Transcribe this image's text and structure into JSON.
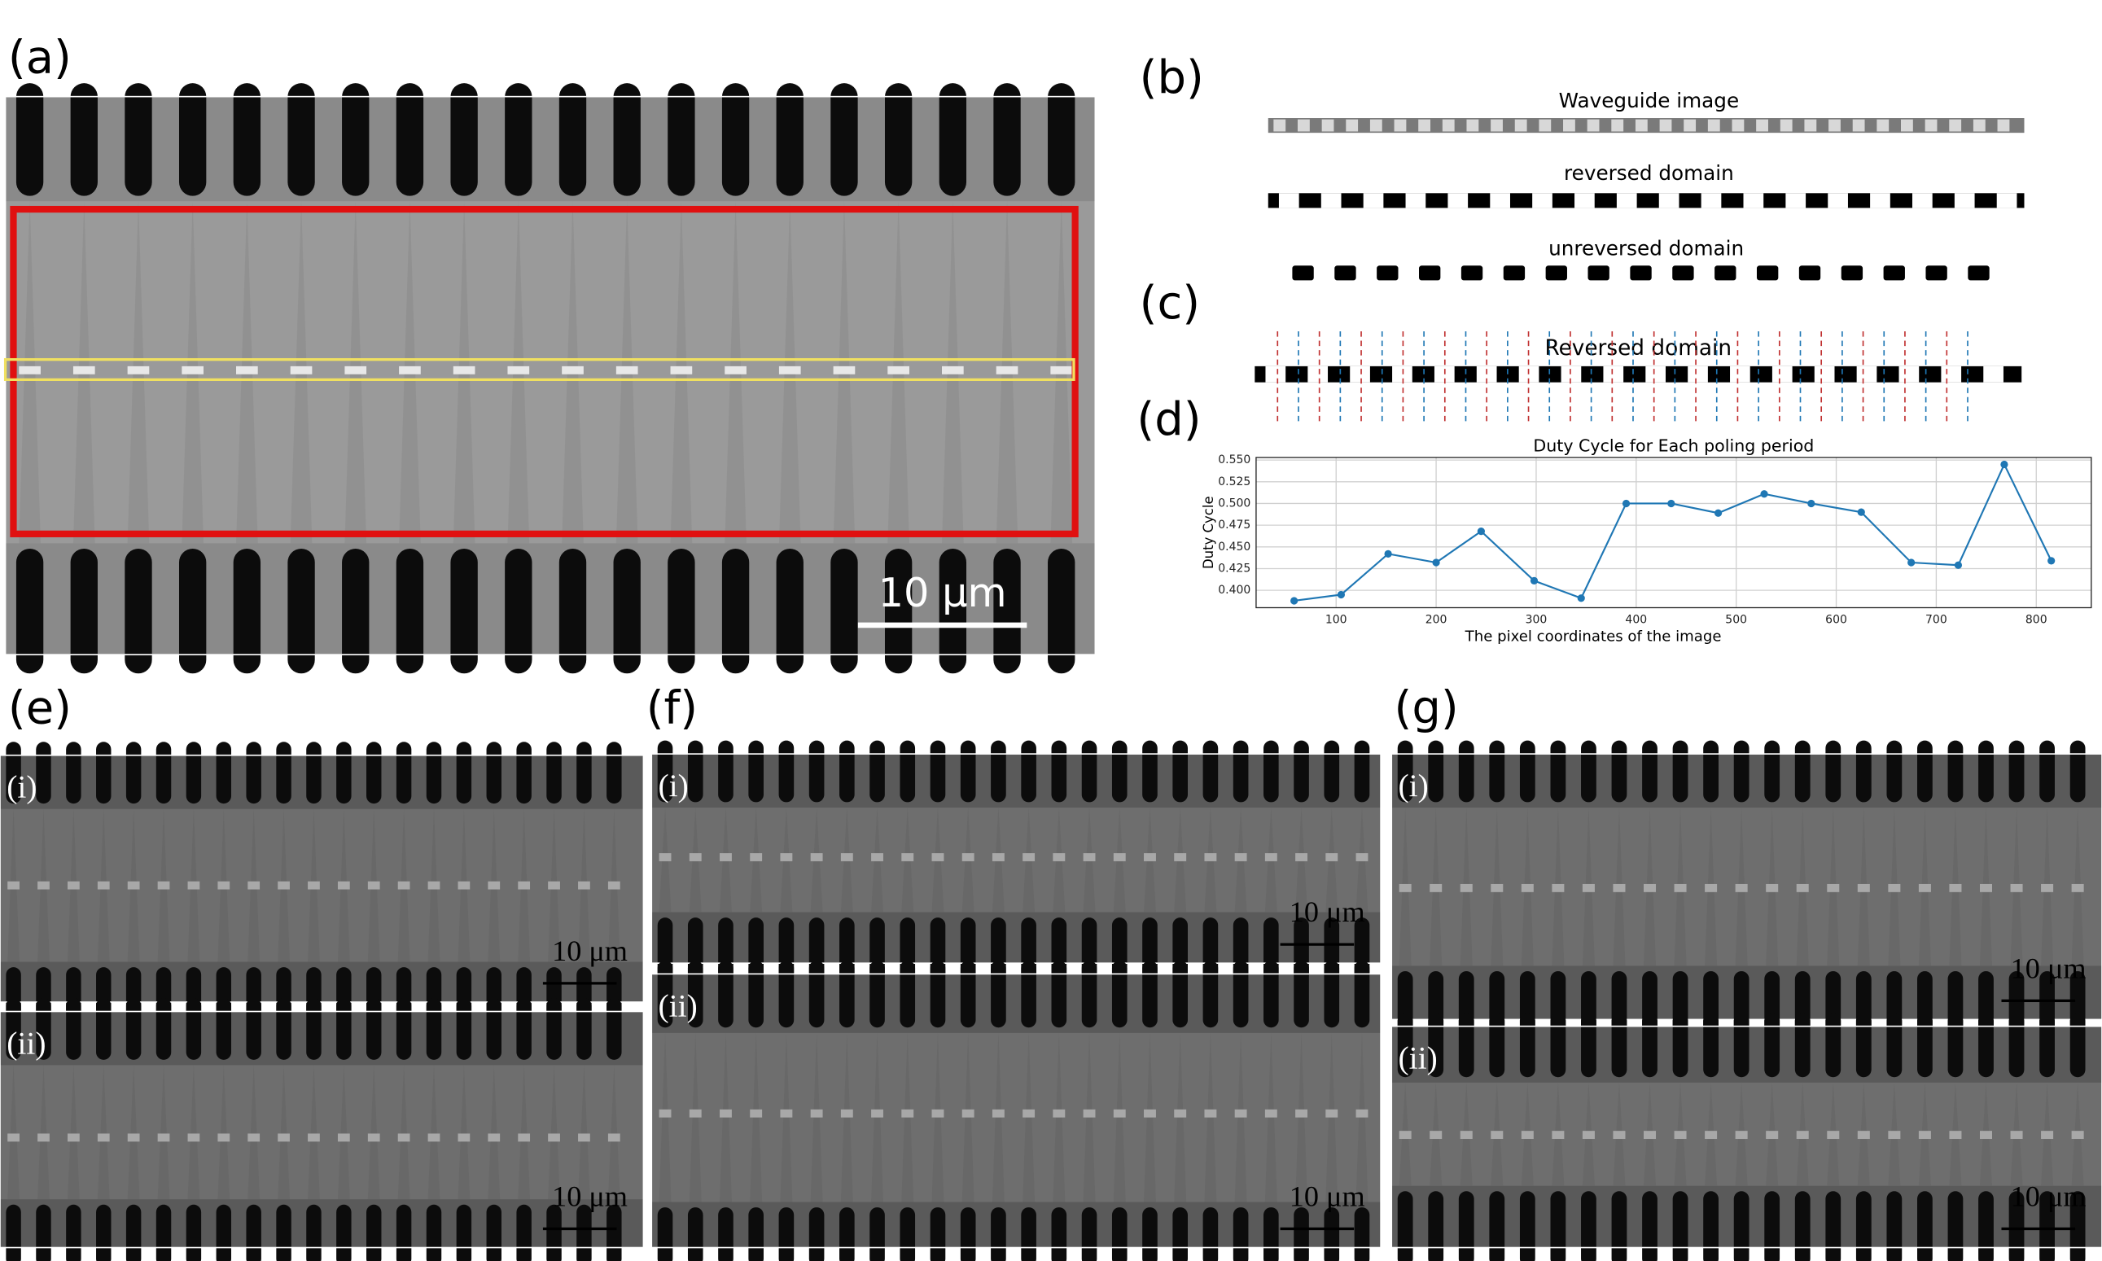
{
  "panels": {
    "a": {
      "label": "(a)",
      "scale_bar": "10 μm"
    },
    "b": {
      "label": "(b)",
      "titles": [
        "Waveguide image",
        "reversed domain",
        "unreversed domain"
      ]
    },
    "c": {
      "label": "(c)",
      "title": "Reversed domain"
    },
    "d": {
      "label": "(d)"
    },
    "e": {
      "label": "(e)",
      "sub": [
        {
          "label": "(i)",
          "scale_bar": "10 μm"
        },
        {
          "label": "(ii)",
          "scale_bar": "10 μm"
        }
      ]
    },
    "f": {
      "label": "(f)",
      "sub": [
        {
          "label": "(i)",
          "scale_bar": "10 μm"
        },
        {
          "label": "(ii)",
          "scale_bar": "10 μm"
        }
      ]
    },
    "g": {
      "label": "(g)",
      "sub": [
        {
          "label": "(i)",
          "scale_bar": "10 μm"
        },
        {
          "label": "(ii)",
          "scale_bar": "10 μm"
        }
      ]
    }
  },
  "chart_data": {
    "type": "line",
    "title": "Duty Cycle for Each poling period",
    "x_label": "The pixel coordinates of the image",
    "y_label": "Duty Cycle",
    "x": [
      58,
      105,
      152,
      200,
      245,
      298,
      345,
      390,
      435,
      482,
      528,
      575,
      625,
      675,
      722,
      768,
      815
    ],
    "values": [
      0.388,
      0.395,
      0.442,
      0.432,
      0.468,
      0.411,
      0.391,
      0.5,
      0.5,
      0.489,
      0.511,
      0.5,
      0.49,
      0.432,
      0.429,
      0.545,
      0.434
    ],
    "color": "#1f77b4",
    "grid": true,
    "xlim": [
      20,
      855
    ],
    "ylim": [
      0.38,
      0.553
    ],
    "xticks": [
      100,
      200,
      300,
      400,
      500,
      600,
      700,
      800
    ],
    "yticks": [
      {
        "value": 0.4,
        "label": "0.400"
      },
      {
        "value": 0.425,
        "label": "0.425"
      },
      {
        "value": 0.45,
        "label": "0.450"
      },
      {
        "value": 0.475,
        "label": "0.475"
      },
      {
        "value": 0.5,
        "label": "0.500"
      },
      {
        "value": 0.525,
        "label": "0.525"
      },
      {
        "value": 0.55,
        "label": "0.550"
      }
    ]
  }
}
